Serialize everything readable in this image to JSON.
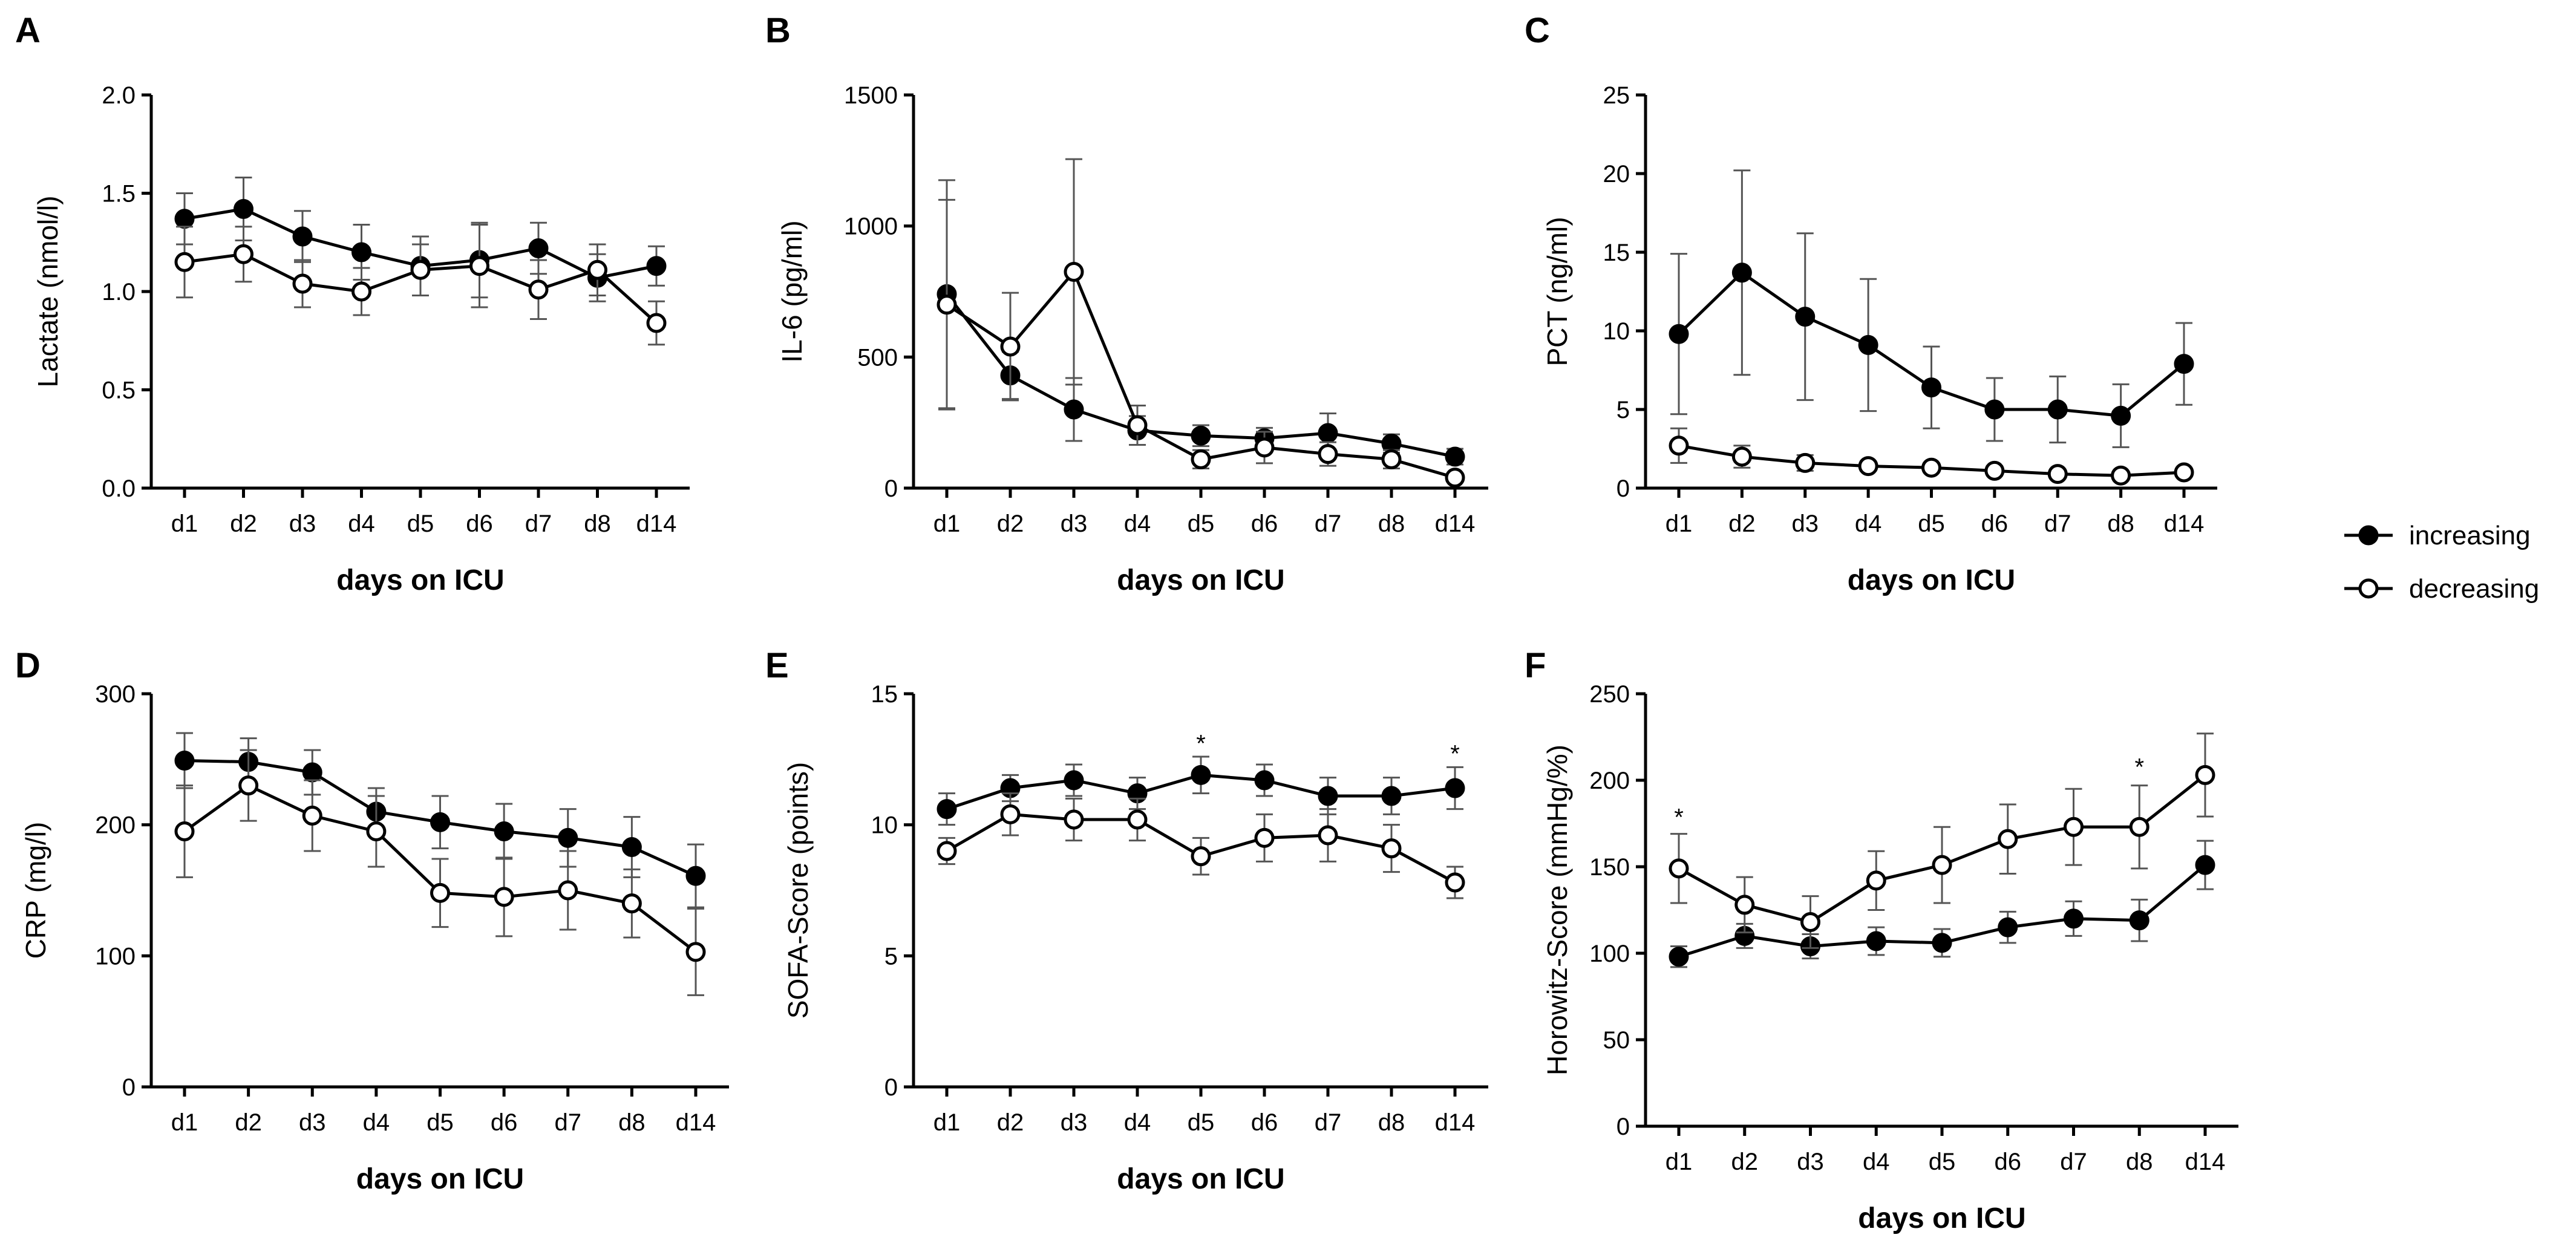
{
  "legend": {
    "increasing": "increasing",
    "decreasing": "decreasing"
  },
  "chart_data": [
    {
      "id": "A",
      "type": "line",
      "letter": "A",
      "xlabel": "days on ICU",
      "ylabel": "Lactate (nmol/l)",
      "categories": [
        "d1",
        "d2",
        "d3",
        "d4",
        "d5",
        "d6",
        "d7",
        "d8",
        "d14"
      ],
      "ylim": [
        0,
        2.0
      ],
      "yticks": [
        0,
        0.5,
        1.0,
        1.5,
        2.0
      ],
      "ytick_labels": [
        "0.0",
        "0.5",
        "1.0",
        "1.5",
        "2.0"
      ],
      "series": [
        {
          "name": "increasing",
          "filled": true,
          "values": [
            1.37,
            1.42,
            1.28,
            1.2,
            1.13,
            1.16,
            1.22,
            1.07,
            1.13
          ],
          "errors": [
            0.13,
            0.16,
            0.13,
            0.14,
            0.15,
            0.19,
            0.13,
            0.12,
            0.1
          ]
        },
        {
          "name": "decreasing",
          "filled": false,
          "values": [
            1.15,
            1.19,
            1.04,
            1.0,
            1.11,
            1.13,
            1.01,
            1.11,
            0.84
          ],
          "errors": [
            0.18,
            0.14,
            0.12,
            0.12,
            0.13,
            0.21,
            0.15,
            0.13,
            0.11
          ]
        }
      ],
      "annotations": []
    },
    {
      "id": "B",
      "type": "line",
      "letter": "B",
      "xlabel": "days on ICU",
      "ylabel": "IL-6 (pg/ml)",
      "categories": [
        "d1",
        "d2",
        "d3",
        "d4",
        "d5",
        "d6",
        "d7",
        "d8",
        "d14"
      ],
      "ylim": [
        0,
        1500
      ],
      "yticks": [
        0,
        500,
        1000,
        1500
      ],
      "ytick_labels": [
        "0",
        "500",
        "1000",
        "1500"
      ],
      "series": [
        {
          "name": "increasing",
          "filled": true,
          "values": [
            740,
            430,
            300,
            220,
            200,
            190,
            210,
            170,
            120
          ],
          "errors": [
            435,
            90,
            120,
            55,
            40,
            40,
            75,
            35,
            30
          ]
        },
        {
          "name": "decreasing",
          "filled": false,
          "values": [
            700,
            540,
            825,
            240,
            110,
            155,
            130,
            110,
            40
          ],
          "errors": [
            400,
            205,
            430,
            75,
            35,
            60,
            45,
            35,
            15
          ]
        }
      ],
      "annotations": []
    },
    {
      "id": "C",
      "type": "line",
      "letter": "C",
      "xlabel": "days on ICU",
      "ylabel": "PCT (ng/ml)",
      "categories": [
        "d1",
        "d2",
        "d3",
        "d4",
        "d5",
        "d6",
        "d7",
        "d8",
        "d14"
      ],
      "ylim": [
        0,
        25
      ],
      "yticks": [
        0,
        5,
        10,
        15,
        20,
        25
      ],
      "ytick_labels": [
        "0",
        "5",
        "10",
        "15",
        "20",
        "25"
      ],
      "series": [
        {
          "name": "increasing",
          "filled": true,
          "values": [
            9.8,
            13.7,
            10.9,
            9.1,
            6.4,
            5.0,
            5.0,
            4.6,
            7.9
          ],
          "errors": [
            5.1,
            6.5,
            5.3,
            4.2,
            2.6,
            2.0,
            2.1,
            2.0,
            2.6
          ]
        },
        {
          "name": "decreasing",
          "filled": false,
          "values": [
            2.7,
            2.0,
            1.6,
            1.4,
            1.3,
            1.1,
            0.9,
            0.8,
            1.0
          ],
          "errors": [
            1.1,
            0.7,
            0.5,
            0.3,
            0.3,
            0.3,
            0.2,
            0.2,
            0.2
          ]
        }
      ],
      "annotations": []
    },
    {
      "id": "D",
      "type": "line",
      "letter": "D",
      "xlabel": "days on ICU",
      "ylabel": "CRP (mg/l)",
      "categories": [
        "d1",
        "d2",
        "d3",
        "d4",
        "d5",
        "d6",
        "d7",
        "d8",
        "d14"
      ],
      "ylim": [
        0,
        300
      ],
      "yticks": [
        0,
        100,
        200,
        300
      ],
      "ytick_labels": [
        "0",
        "100",
        "200",
        "300"
      ],
      "series": [
        {
          "name": "increasing",
          "filled": true,
          "values": [
            249,
            248,
            240,
            210,
            202,
            195,
            190,
            183,
            161
          ],
          "errors": [
            21,
            18,
            17,
            18,
            20,
            21,
            22,
            23,
            24
          ]
        },
        {
          "name": "decreasing",
          "filled": false,
          "values": [
            195,
            230,
            207,
            195,
            148,
            145,
            150,
            140,
            103
          ],
          "errors": [
            35,
            27,
            27,
            27,
            26,
            30,
            30,
            26,
            33
          ]
        }
      ],
      "annotations": []
    },
    {
      "id": "E",
      "type": "line",
      "letter": "E",
      "xlabel": "days on ICU",
      "ylabel": "SOFA-Score (points)",
      "categories": [
        "d1",
        "d2",
        "d3",
        "d4",
        "d5",
        "d6",
        "d7",
        "d8",
        "d14"
      ],
      "ylim": [
        0,
        15
      ],
      "yticks": [
        0,
        5,
        10,
        15
      ],
      "ytick_labels": [
        "0",
        "5",
        "10",
        "15"
      ],
      "series": [
        {
          "name": "increasing",
          "filled": true,
          "values": [
            10.6,
            11.4,
            11.7,
            11.2,
            11.9,
            11.7,
            11.1,
            11.1,
            11.4
          ],
          "errors": [
            0.6,
            0.5,
            0.6,
            0.6,
            0.7,
            0.6,
            0.7,
            0.7,
            0.8
          ]
        },
        {
          "name": "decreasing",
          "filled": false,
          "values": [
            9.0,
            10.4,
            10.2,
            10.2,
            8.8,
            9.5,
            9.6,
            9.1,
            7.8
          ],
          "errors": [
            0.5,
            0.8,
            0.8,
            0.8,
            0.7,
            0.9,
            1.0,
            0.9,
            0.6
          ]
        }
      ],
      "annotations": [
        {
          "text": "*",
          "category": "d5",
          "value": 12.8
        },
        {
          "text": "*",
          "category": "d14",
          "value": 12.4
        }
      ]
    },
    {
      "id": "F",
      "type": "line",
      "letter": "F",
      "xlabel": "days on ICU",
      "ylabel": "Horowitz-Score (mmHg/%)",
      "categories": [
        "d1",
        "d2",
        "d3",
        "d4",
        "d5",
        "d6",
        "d7",
        "d8",
        "d14"
      ],
      "ylim": [
        0,
        250
      ],
      "yticks": [
        0,
        50,
        100,
        150,
        200,
        250
      ],
      "ytick_labels": [
        "0",
        "50",
        "100",
        "150",
        "200",
        "250"
      ],
      "series": [
        {
          "name": "increasing",
          "filled": true,
          "values": [
            98,
            110,
            104,
            107,
            106,
            115,
            120,
            119,
            151
          ],
          "errors": [
            6,
            7,
            7,
            8,
            8,
            9,
            10,
            12,
            14
          ]
        },
        {
          "name": "decreasing",
          "filled": false,
          "values": [
            149,
            128,
            118,
            142,
            151,
            166,
            173,
            173,
            203
          ],
          "errors": [
            20,
            16,
            15,
            17,
            22,
            20,
            22,
            24,
            24
          ]
        }
      ],
      "annotations": [
        {
          "text": "*",
          "category": "d1",
          "value": 174
        },
        {
          "text": "*",
          "category": "d8",
          "value": 203
        }
      ]
    }
  ]
}
